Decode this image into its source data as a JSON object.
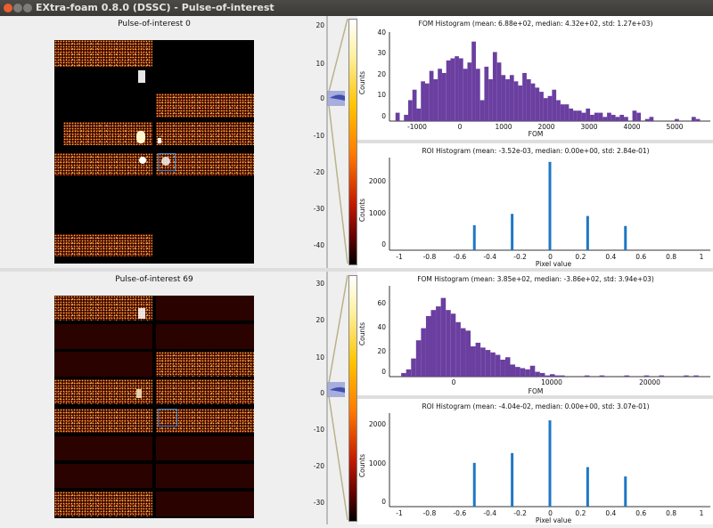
{
  "window": {
    "title": "EXtra-foam 0.8.0 (DSSC) - Pulse-of-interest"
  },
  "colors": {
    "fom": "#6a3fa0",
    "roi": "#1f77c4",
    "frame": "#3b7bc4"
  },
  "pulses": [
    {
      "title": "Pulse-of-interest 0",
      "colorbar_ticks": [
        "20",
        "10",
        "0",
        "-10",
        "-20",
        "-30",
        "-40"
      ],
      "fom_title": "FOM Histogram (mean: 6.88e+02, median: 4.32e+02, std: 1.27e+03)",
      "fom_xlabel": "FOM",
      "fom_ylabel": "Counts",
      "fom_xticks": [
        "-1000",
        "0",
        "1000",
        "2000",
        "3000",
        "4000",
        "5000"
      ],
      "fom_yticks": [
        "40",
        "30",
        "20",
        "10",
        "0"
      ],
      "roi_title": "ROI Histogram (mean: -3.52e-03, median: 0.00e+00, std: 2.84e-01)",
      "roi_xlabel": "Pixel value",
      "roi_ylabel": "Counts",
      "roi_xticks": [
        "-1",
        "-0.8",
        "-0.6",
        "-0.4",
        "-0.2",
        "0",
        "0.2",
        "0.4",
        "0.6",
        "0.8",
        "1"
      ],
      "roi_yticks": [
        "2000",
        "1000",
        "0"
      ]
    },
    {
      "title": "Pulse-of-interest 69",
      "colorbar_ticks": [
        "30",
        "20",
        "10",
        "0",
        "-10",
        "-20",
        "-30"
      ],
      "fom_title": "FOM Histogram (mean: 3.85e+02, median: -3.86e+02, std: 3.94e+03)",
      "fom_xlabel": "FOM",
      "fom_ylabel": "Counts",
      "fom_xticks": [
        "0",
        "10000",
        "20000"
      ],
      "fom_yticks": [
        "60",
        "40",
        "20",
        "0"
      ],
      "roi_title": "ROI Histogram (mean: -4.04e-02, median: 0.00e+00, std: 3.07e-01)",
      "roi_xlabel": "Pixel value",
      "roi_ylabel": "Counts",
      "roi_xticks": [
        "-1",
        "-0.8",
        "-0.6",
        "-0.4",
        "-0.2",
        "0",
        "0.2",
        "0.4",
        "0.6",
        "0.8",
        "1"
      ],
      "roi_yticks": [
        "2000",
        "1000",
        "0"
      ]
    }
  ],
  "chart_data": [
    {
      "type": "bar",
      "title": "FOM Histogram (mean: 6.88e+02, median: 4.32e+02, std: 1.27e+03)",
      "xlabel": "FOM",
      "ylabel": "Counts",
      "xlim": [
        -1600,
        5900
      ],
      "ylim": [
        0,
        40
      ],
      "x": [
        -1450,
        -1350,
        -1250,
        -1150,
        -1050,
        -950,
        -850,
        -750,
        -650,
        -550,
        -450,
        -350,
        -250,
        -150,
        -50,
        50,
        150,
        250,
        350,
        450,
        550,
        650,
        750,
        850,
        950,
        1050,
        1150,
        1250,
        1350,
        1450,
        1550,
        1650,
        1750,
        1850,
        1950,
        2050,
        2150,
        2250,
        2350,
        2450,
        2550,
        2650,
        2750,
        2850,
        2950,
        3050,
        3150,
        3250,
        3350,
        3450,
        3550,
        3650,
        3750,
        3850,
        3950,
        4050,
        4150,
        4250,
        4350,
        4450,
        4550,
        4650,
        4750,
        4850,
        4950,
        5050,
        5150,
        5250,
        5350,
        5450,
        5550,
        5650
      ],
      "values": [
        4,
        0,
        3,
        10,
        15,
        6,
        19,
        18,
        24,
        20,
        25,
        23,
        29,
        30,
        31,
        30,
        25,
        28,
        38,
        25,
        10,
        26,
        20,
        33,
        28,
        22,
        20,
        22,
        19,
        17,
        23,
        20,
        18,
        16,
        14,
        11,
        12,
        15,
        10,
        8,
        8,
        6,
        5,
        5,
        4,
        6,
        3,
        4,
        4,
        2,
        4,
        3,
        2,
        3,
        2,
        0,
        5,
        4,
        0,
        1,
        2,
        0,
        0,
        0,
        0,
        0,
        1,
        0,
        0,
        0,
        2,
        1
      ]
    },
    {
      "type": "bar",
      "title": "ROI Histogram (mean: -3.52e-03, median: 0.00e+00, std: 2.84e-01)",
      "xlabel": "Pixel value",
      "ylabel": "Counts",
      "xlim": [
        -1.05,
        1.05
      ],
      "ylim": [
        0,
        2600
      ],
      "x": [
        -0.5,
        -0.25,
        0,
        0.25,
        0.5
      ],
      "values": [
        700,
        1020,
        2480,
        960,
        680
      ]
    },
    {
      "type": "bar",
      "title": "FOM Histogram (mean: 3.85e+02, median: -3.86e+02, std: 3.94e+03)",
      "xlabel": "FOM",
      "ylabel": "Counts",
      "xlim": [
        -6000,
        26000
      ],
      "ylim": [
        0,
        75
      ],
      "x": [
        -4750,
        -4250,
        -3750,
        -3250,
        -2750,
        -2250,
        -1750,
        -1250,
        -750,
        -250,
        250,
        750,
        1250,
        1750,
        2250,
        2750,
        3250,
        3750,
        4250,
        4750,
        5250,
        5750,
        6250,
        6750,
        7250,
        7750,
        8250,
        8750,
        9250,
        9750,
        10250,
        10750,
        11250,
        13750,
        15250,
        17750,
        19750,
        21250,
        23750,
        24750
      ],
      "values": [
        3,
        6,
        15,
        30,
        40,
        50,
        55,
        58,
        65,
        55,
        52,
        45,
        40,
        38,
        25,
        28,
        24,
        22,
        20,
        18,
        14,
        16,
        10,
        8,
        7,
        6,
        9,
        4,
        3,
        1,
        2,
        1,
        1,
        1,
        1,
        1,
        1,
        1,
        1,
        1
      ]
    },
    {
      "type": "bar",
      "title": "ROI Histogram (mean: -4.04e-02, median: 0.00e+00, std: 3.07e-01)",
      "xlabel": "Pixel value",
      "ylabel": "Counts",
      "xlim": [
        -1.05,
        1.05
      ],
      "ylim": [
        0,
        2200
      ],
      "x": [
        -0.5,
        -0.25,
        0,
        0.25,
        0.5
      ],
      "values": [
        1030,
        1260,
        2030,
        930,
        710
      ]
    }
  ]
}
